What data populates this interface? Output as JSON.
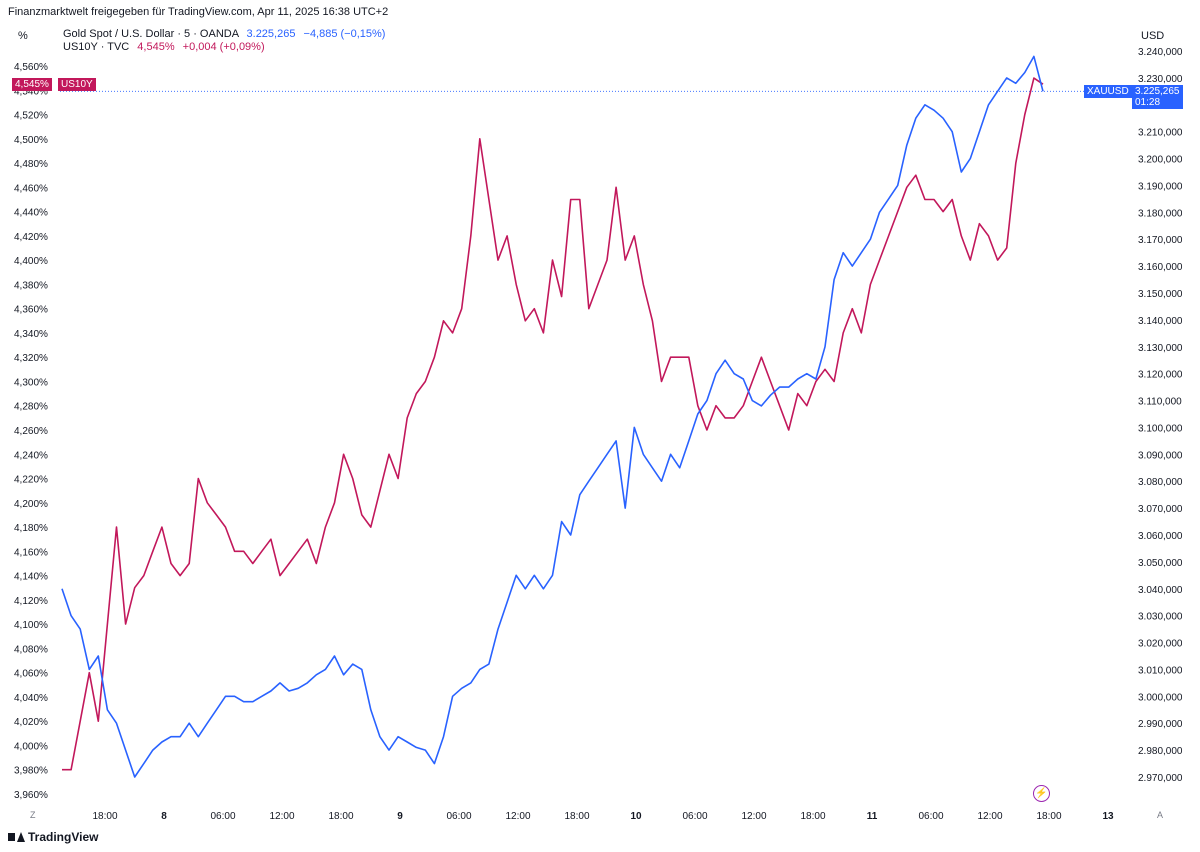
{
  "header": {
    "attribution": "Finanzmarktwelt freigegeben für TradingView.com, Apr 11, 2025 16:38 UTC+2",
    "left_unit": "%",
    "right_unit": "USD"
  },
  "legend": [
    {
      "symbol": "Gold Spot / U.S. Dollar · 5 · OANDA",
      "value": "3.225,265",
      "change": "−4,885 (−0,15%)"
    },
    {
      "symbol": "US10Y · TVC",
      "value": "4,545%",
      "change": "+0,004 (+0,09%)"
    }
  ],
  "badges": {
    "us10y_value": "4,545%",
    "us10y_label": "US10Y",
    "xauusd_label": "XAUUSD",
    "xauusd_value": "3.225,265",
    "xauusd_countdown": "01:28"
  },
  "footer": {
    "brand": "TradingView",
    "left_corner": "Z",
    "right_corner": "A"
  },
  "colors": {
    "gold": "#2962ff",
    "yield": "#c2185b"
  },
  "chart_data": {
    "type": "line",
    "x_ticks": [
      "18:00",
      "8",
      "06:00",
      "12:00",
      "18:00",
      "9",
      "06:00",
      "12:00",
      "18:00",
      "10",
      "06:00",
      "12:00",
      "18:00",
      "11",
      "06:00",
      "12:00",
      "18:00",
      "13"
    ],
    "left_axis": {
      "ticks": [
        "4,560%",
        "4,540%",
        "4,520%",
        "4,500%",
        "4,480%",
        "4,460%",
        "4,440%",
        "4,420%",
        "4,400%",
        "4,380%",
        "4,360%",
        "4,340%",
        "4,320%",
        "4,300%",
        "4,280%",
        "4,260%",
        "4,240%",
        "4,220%",
        "4,200%",
        "4,180%",
        "4,160%",
        "4,140%",
        "4,120%",
        "4,100%",
        "4,080%",
        "4,060%",
        "4,040%",
        "4,020%",
        "4,000%",
        "3,980%",
        "3,960%"
      ],
      "range": [
        3.96,
        4.56
      ]
    },
    "right_axis": {
      "ticks": [
        "3.240,000",
        "3.230,000",
        "3.210,000",
        "3.200,000",
        "3.190,000",
        "3.180,000",
        "3.170,000",
        "3.160,000",
        "3.150,000",
        "3.140,000",
        "3.130,000",
        "3.120,000",
        "3.110,000",
        "3.100,000",
        "3.090,000",
        "3.080,000",
        "3.070,000",
        "3.060,000",
        "3.050,000",
        "3.040,000",
        "3.030,000",
        "3.020,000",
        "3.010,000",
        "3.000,000",
        "2.990,000",
        "2.980,000",
        "2.970,000"
      ],
      "range": [
        2.97,
        3.24
      ]
    },
    "series": [
      {
        "name": "US10Y",
        "axis": "left",
        "points": [
          [
            0,
            3.98
          ],
          [
            1,
            3.98
          ],
          [
            2,
            4.02
          ],
          [
            3,
            4.06
          ],
          [
            4,
            4.02
          ],
          [
            5,
            4.1
          ],
          [
            6,
            4.18
          ],
          [
            7,
            4.1
          ],
          [
            8,
            4.13
          ],
          [
            9,
            4.14
          ],
          [
            10,
            4.16
          ],
          [
            11,
            4.18
          ],
          [
            12,
            4.15
          ],
          [
            13,
            4.14
          ],
          [
            14,
            4.15
          ],
          [
            15,
            4.22
          ],
          [
            16,
            4.2
          ],
          [
            17,
            4.19
          ],
          [
            18,
            4.18
          ],
          [
            19,
            4.16
          ],
          [
            20,
            4.16
          ],
          [
            21,
            4.15
          ],
          [
            22,
            4.16
          ],
          [
            23,
            4.17
          ],
          [
            24,
            4.14
          ],
          [
            25,
            4.15
          ],
          [
            26,
            4.16
          ],
          [
            27,
            4.17
          ],
          [
            28,
            4.15
          ],
          [
            29,
            4.18
          ],
          [
            30,
            4.2
          ],
          [
            31,
            4.24
          ],
          [
            32,
            4.22
          ],
          [
            33,
            4.19
          ],
          [
            34,
            4.18
          ],
          [
            35,
            4.21
          ],
          [
            36,
            4.24
          ],
          [
            37,
            4.22
          ],
          [
            38,
            4.27
          ],
          [
            39,
            4.29
          ],
          [
            40,
            4.3
          ],
          [
            41,
            4.32
          ],
          [
            42,
            4.35
          ],
          [
            43,
            4.34
          ],
          [
            44,
            4.36
          ],
          [
            45,
            4.42
          ],
          [
            46,
            4.5
          ],
          [
            47,
            4.45
          ],
          [
            48,
            4.4
          ],
          [
            49,
            4.42
          ],
          [
            50,
            4.38
          ],
          [
            51,
            4.35
          ],
          [
            52,
            4.36
          ],
          [
            53,
            4.34
          ],
          [
            54,
            4.4
          ],
          [
            55,
            4.37
          ],
          [
            56,
            4.45
          ],
          [
            57,
            4.45
          ],
          [
            58,
            4.36
          ],
          [
            59,
            4.38
          ],
          [
            60,
            4.4
          ],
          [
            61,
            4.46
          ],
          [
            62,
            4.4
          ],
          [
            63,
            4.42
          ],
          [
            64,
            4.38
          ],
          [
            65,
            4.35
          ],
          [
            66,
            4.3
          ],
          [
            67,
            4.32
          ],
          [
            68,
            4.32
          ],
          [
            69,
            4.32
          ],
          [
            70,
            4.28
          ],
          [
            71,
            4.26
          ],
          [
            72,
            4.28
          ],
          [
            73,
            4.27
          ],
          [
            74,
            4.27
          ],
          [
            75,
            4.28
          ],
          [
            76,
            4.3
          ],
          [
            77,
            4.32
          ],
          [
            78,
            4.3
          ],
          [
            79,
            4.28
          ],
          [
            80,
            4.26
          ],
          [
            81,
            4.29
          ],
          [
            82,
            4.28
          ],
          [
            83,
            4.3
          ],
          [
            84,
            4.31
          ],
          [
            85,
            4.3
          ],
          [
            86,
            4.34
          ],
          [
            87,
            4.36
          ],
          [
            88,
            4.34
          ],
          [
            89,
            4.38
          ],
          [
            90,
            4.4
          ],
          [
            91,
            4.42
          ],
          [
            92,
            4.44
          ],
          [
            93,
            4.46
          ],
          [
            94,
            4.47
          ],
          [
            95,
            4.45
          ],
          [
            96,
            4.45
          ],
          [
            97,
            4.44
          ],
          [
            98,
            4.45
          ],
          [
            99,
            4.42
          ],
          [
            100,
            4.4
          ],
          [
            101,
            4.43
          ],
          [
            102,
            4.42
          ],
          [
            103,
            4.4
          ],
          [
            104,
            4.41
          ],
          [
            105,
            4.48
          ],
          [
            106,
            4.52
          ],
          [
            107,
            4.55
          ],
          [
            108,
            4.545
          ]
        ]
      },
      {
        "name": "XAUUSD",
        "axis": "right",
        "points": [
          [
            0,
            3.04
          ],
          [
            1,
            3.03
          ],
          [
            2,
            3.025
          ],
          [
            3,
            3.01
          ],
          [
            4,
            3.015
          ],
          [
            5,
            2.995
          ],
          [
            6,
            2.99
          ],
          [
            7,
            2.98
          ],
          [
            8,
            2.97
          ],
          [
            9,
            2.975
          ],
          [
            10,
            2.98
          ],
          [
            11,
            2.983
          ],
          [
            12,
            2.985
          ],
          [
            13,
            2.985
          ],
          [
            14,
            2.99
          ],
          [
            15,
            2.985
          ],
          [
            16,
            2.99
          ],
          [
            17,
            2.995
          ],
          [
            18,
            3.0
          ],
          [
            19,
            3.0
          ],
          [
            20,
            2.998
          ],
          [
            21,
            2.998
          ],
          [
            22,
            3.0
          ],
          [
            23,
            3.002
          ],
          [
            24,
            3.005
          ],
          [
            25,
            3.002
          ],
          [
            26,
            3.003
          ],
          [
            27,
            3.005
          ],
          [
            28,
            3.008
          ],
          [
            29,
            3.01
          ],
          [
            30,
            3.015
          ],
          [
            31,
            3.008
          ],
          [
            32,
            3.012
          ],
          [
            33,
            3.01
          ],
          [
            34,
            2.995
          ],
          [
            35,
            2.985
          ],
          [
            36,
            2.98
          ],
          [
            37,
            2.985
          ],
          [
            38,
            2.983
          ],
          [
            39,
            2.981
          ],
          [
            40,
            2.98
          ],
          [
            41,
            2.975
          ],
          [
            42,
            2.985
          ],
          [
            43,
            3.0
          ],
          [
            44,
            3.003
          ],
          [
            45,
            3.005
          ],
          [
            46,
            3.01
          ],
          [
            47,
            3.012
          ],
          [
            48,
            3.025
          ],
          [
            49,
            3.035
          ],
          [
            50,
            3.045
          ],
          [
            51,
            3.04
          ],
          [
            52,
            3.045
          ],
          [
            53,
            3.04
          ],
          [
            54,
            3.045
          ],
          [
            55,
            3.065
          ],
          [
            56,
            3.06
          ],
          [
            57,
            3.075
          ],
          [
            58,
            3.08
          ],
          [
            59,
            3.085
          ],
          [
            60,
            3.09
          ],
          [
            61,
            3.095
          ],
          [
            62,
            3.07
          ],
          [
            63,
            3.1
          ],
          [
            64,
            3.09
          ],
          [
            65,
            3.085
          ],
          [
            66,
            3.08
          ],
          [
            67,
            3.09
          ],
          [
            68,
            3.085
          ],
          [
            69,
            3.095
          ],
          [
            70,
            3.105
          ],
          [
            71,
            3.11
          ],
          [
            72,
            3.12
          ],
          [
            73,
            3.125
          ],
          [
            74,
            3.12
          ],
          [
            75,
            3.118
          ],
          [
            76,
            3.11
          ],
          [
            77,
            3.108
          ],
          [
            78,
            3.112
          ],
          [
            79,
            3.115
          ],
          [
            80,
            3.115
          ],
          [
            81,
            3.118
          ],
          [
            82,
            3.12
          ],
          [
            83,
            3.118
          ],
          [
            84,
            3.13
          ],
          [
            85,
            3.155
          ],
          [
            86,
            3.165
          ],
          [
            87,
            3.16
          ],
          [
            88,
            3.165
          ],
          [
            89,
            3.17
          ],
          [
            90,
            3.18
          ],
          [
            91,
            3.185
          ],
          [
            92,
            3.19
          ],
          [
            93,
            3.205
          ],
          [
            94,
            3.215
          ],
          [
            95,
            3.22
          ],
          [
            96,
            3.218
          ],
          [
            97,
            3.215
          ],
          [
            98,
            3.21
          ],
          [
            99,
            3.195
          ],
          [
            100,
            3.2
          ],
          [
            101,
            3.21
          ],
          [
            102,
            3.22
          ],
          [
            103,
            3.225
          ],
          [
            104,
            3.23
          ],
          [
            105,
            3.228
          ],
          [
            106,
            3.232
          ],
          [
            107,
            3.238
          ],
          [
            108,
            3.225
          ]
        ]
      }
    ],
    "grid": false,
    "legend_position": "top-left"
  }
}
